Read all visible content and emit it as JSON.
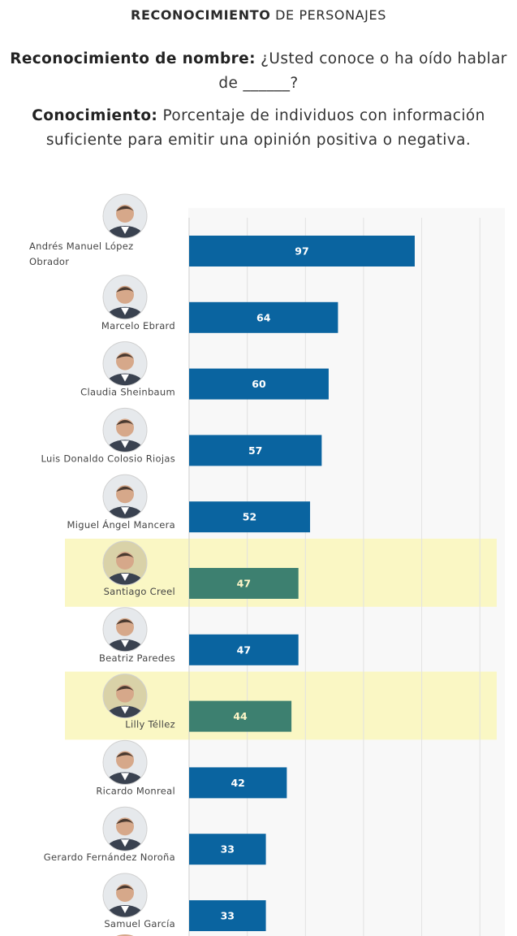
{
  "header": {
    "title_bold": "RECONOCIMIENTO",
    "title_rest": " DE PERSONAJES"
  },
  "definitions": {
    "name_label": "Reconocimiento de nombre:",
    "name_text": " ¿Usted conoce o ha oído hablar de ______?",
    "knowledge_label": "Conocimiento:",
    "knowledge_text": " Porcentaje de individuos con información suficiente para emitir una opinión positiva o negativa."
  },
  "colors": {
    "bar": "#0a64a0",
    "bar_highlight": "#3d8070",
    "highlight_band": "#faf7c4",
    "plot_background": "#f8f8f8",
    "gridline": "#e1e1e1"
  },
  "chart_data": {
    "type": "bar",
    "orientation": "horizontal",
    "xlim": [
      0,
      130
    ],
    "grid": true,
    "categories": [
      "Andrés Manuel López Obrador",
      "Marcelo Ebrard",
      "Claudia Sheinbaum",
      "Luis Donaldo Colosio Riojas",
      "Miguel Ángel Mancera",
      "Santiago Creel",
      "Beatriz Paredes",
      "Lilly Téllez",
      "Ricardo Monreal",
      "Gerardo Fernández Noroña",
      "Samuel García"
    ],
    "category_lines": [
      [
        "Andrés Manuel López",
        "Obrador"
      ],
      [
        "Marcelo Ebrard"
      ],
      [
        "Claudia Sheinbaum"
      ],
      [
        "Luis Donaldo Colosio Riojas"
      ],
      [
        "Miguel Ángel Mancera"
      ],
      [
        "Santiago Creel"
      ],
      [
        "Beatriz Paredes"
      ],
      [
        "Lilly Téllez"
      ],
      [
        "Ricardo Monreal"
      ],
      [
        "Gerardo Fernández Noroña"
      ],
      [
        "Samuel García"
      ]
    ],
    "values": [
      97,
      64,
      60,
      57,
      52,
      47,
      47,
      44,
      42,
      33,
      33
    ],
    "data_labels": [
      "97",
      "64",
      "60",
      "57",
      "52",
      "47",
      "47",
      "44",
      "42",
      "33",
      "33"
    ],
    "highlighted": [
      "Santiago Creel",
      "Lilly Téllez"
    ],
    "avatars": [
      "avatar-icon",
      "avatar-icon",
      "avatar-icon",
      "avatar-icon",
      "avatar-icon",
      "avatar-icon",
      "avatar-icon",
      "avatar-icon",
      "avatar-icon",
      "avatar-icon",
      "avatar-icon"
    ]
  }
}
